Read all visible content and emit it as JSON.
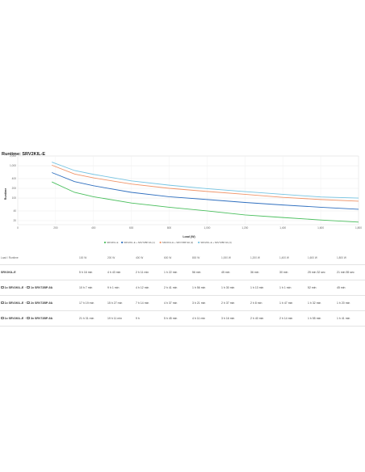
{
  "chart_data": {
    "type": "line",
    "title": "Runtime: SRV2KIL-E",
    "xlabel": "Load (W)",
    "ylabel": "Runtime",
    "xlim": [
      0,
      1800
    ],
    "x_ticks": [
      "0",
      "200",
      "400",
      "600",
      "800",
      "1,000",
      "1,200",
      "1,400",
      "1,600",
      "1,800"
    ],
    "y_ticks": [
      20,
      40,
      100,
      200,
      400,
      1000,
      2000
    ],
    "y_tick_labels": [
      "20",
      "40",
      "100",
      "200",
      "400",
      "1,000",
      "2,000"
    ],
    "y_scale": "log",
    "ylim": [
      15,
      2000
    ],
    "grid": true,
    "legend_position": "bottom",
    "series": [
      {
        "name": "SRV2KIL-E",
        "color": "#4bbf5e",
        "x": [
          180,
          300,
          400,
          600,
          800,
          1000,
          1200,
          1400,
          1600,
          1800
        ],
        "y": [
          316,
          150,
          110,
          70,
          52,
          40,
          30,
          25,
          21,
          18
        ]
      },
      {
        "name": "SRV2KIL-E + SRV72BP-9A (1)",
        "color": "#2f6fbf",
        "x": [
          180,
          300,
          400,
          600,
          800,
          1000,
          1200,
          1400,
          1600,
          1800
        ],
        "y": [
          615,
          322,
          240,
          150,
          110,
          90,
          73,
          61,
          52,
          45
        ]
      },
      {
        "name": "SRV2KIL-E + SRV72BP-9A (2)",
        "color": "#f0956a",
        "x": [
          180,
          300,
          400,
          600,
          800,
          1000,
          1200,
          1400,
          1600,
          1800
        ],
        "y": [
          1039,
          555,
          420,
          272,
          200,
          160,
          130,
          105,
          90,
          80
        ]
      },
      {
        "name": "SRV2KIL-E + SRV72BP-9A (3)",
        "color": "#76c4e2",
        "x": [
          180,
          300,
          400,
          600,
          800,
          1000,
          1200,
          1400,
          1600,
          1800
        ],
        "y": [
          1291,
          710,
          540,
          340,
          250,
          195,
          158,
          130,
          108,
          100
        ]
      }
    ]
  },
  "table": {
    "headers": [
      "Load / Runtime",
      "100 W",
      "200 W",
      "400 W",
      "600 W",
      "800 W",
      "1,000 W",
      "1,200 W",
      "1,400 W",
      "1,600 W",
      "1,800 W"
    ],
    "rows": [
      {
        "plus": "",
        "name": "SRV2KIL-E",
        "addon_plus": "",
        "addon": "",
        "values": [
          "5 h 16 min",
          "4 h 43 min",
          "2 h 11 min",
          "1 h 22 min",
          "56 min",
          "45 min",
          "36 min",
          "30 min",
          "25 min 32 sec",
          "21 min 55 sec"
        ]
      },
      {
        "plus": "1x",
        "name": "SRV2KIL-E",
        "addon_plus": "1x",
        "addon": "SRV72BP-9A",
        "values": [
          "10 h 7 min",
          "9 h 1 min",
          "4 h 12 min",
          "2 h 41 min",
          "1 h 56 min",
          "1 h 30 min",
          "1 h 13 min",
          "1 h 1 min",
          "52 min",
          "45 min"
        ]
      },
      {
        "plus": "1x",
        "name": "SRV2KIL-E",
        "addon_plus": "2x",
        "addon": "SRV72BP-9A",
        "values": [
          "17 h 19 min",
          "15 h 27 min",
          "7 h 14 min",
          "4 h 37 min",
          "3 h 21 min",
          "2 h 37 min",
          "2 h 8 min",
          "1 h 47 min",
          "1 h 32 min",
          "1 h 20 min"
        ]
      },
      {
        "plus": "1x",
        "name": "SRV2KIL-E",
        "addon_plus": "3x",
        "addon": "SRV72BP-9A",
        "values": [
          "21 h 31 min",
          "19 h 11 min",
          "9 h",
          "5 h 45 min",
          "4 h 11 min",
          "3 h 16 min",
          "2 h 40 min",
          "2 h 14 min",
          "1 h 55 min",
          "1 h 41 min"
        ]
      }
    ]
  }
}
